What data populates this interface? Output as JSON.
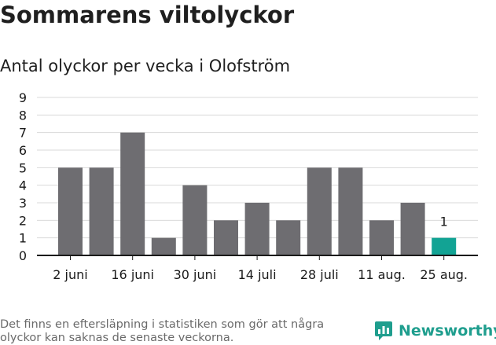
{
  "header": {
    "title": "Sommarens viltolyckor",
    "subtitle": "Antal olyckor per vecka i Olofström"
  },
  "footer": {
    "note": "Det finns en eftersläpning i statistiken som gör att några olyckor kan saknas de senaste veckorna.",
    "brand": "Newsworthy",
    "brand_icon": "newsworthy-logo-icon"
  },
  "colors": {
    "bar": "#6e6d71",
    "highlight": "#12a394",
    "grid": "#d9d9d9",
    "axis": "#1a1a1a",
    "brand": "#1f9e8e"
  },
  "chart_data": {
    "type": "bar",
    "title": "Sommarens viltolyckor",
    "subtitle": "Antal olyckor per vecka i Olofström",
    "values": [
      5,
      5,
      7,
      1,
      4,
      2,
      3,
      2,
      5,
      5,
      2,
      3,
      1
    ],
    "x_tick_labels": [
      "2 juni",
      "16 juni",
      "30 juni",
      "14 juli",
      "28 juli",
      "11 aug.",
      "25 aug."
    ],
    "y_ticks": [
      0,
      1,
      2,
      3,
      4,
      5,
      6,
      7,
      8,
      9
    ],
    "ylim": [
      0,
      9
    ],
    "grid": true,
    "highlight_index": 12,
    "data_labels": [
      {
        "index": 12,
        "text": "1"
      }
    ]
  }
}
